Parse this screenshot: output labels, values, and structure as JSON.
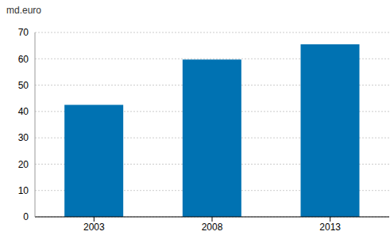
{
  "chart_data": {
    "type": "bar",
    "y_label": "md.euro",
    "categories": [
      "2003",
      "2008",
      "2013"
    ],
    "values": [
      42.5,
      59.7,
      65.5
    ],
    "color": "#0072b2",
    "ylim": [
      0,
      70
    ],
    "yticks": [
      0,
      10,
      20,
      30,
      40,
      50,
      60,
      70
    ],
    "grid": true
  }
}
